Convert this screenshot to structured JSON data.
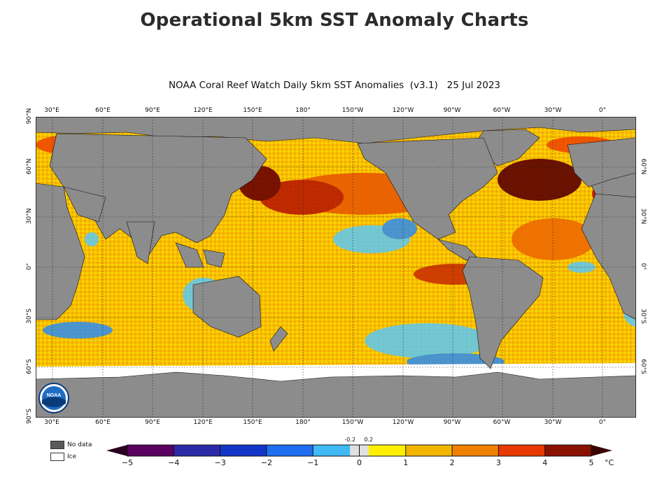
{
  "page": {
    "title": "Operational 5km SST Anomaly Charts"
  },
  "map": {
    "title": "NOAA Coral Reef Watch Daily 5km SST Anomalies  (v3.1)   25 Jul 2023",
    "lon_labels": [
      "30°E",
      "60°E",
      "90°E",
      "120°E",
      "150°E",
      "180°",
      "150°W",
      "120°W",
      "90°W",
      "60°W",
      "30°W",
      "0°"
    ],
    "lat_labels_left": [
      "90°N",
      "60°N",
      "30°N",
      "0°",
      "30°S",
      "60°S",
      "90°S"
    ],
    "lat_labels_right": [
      "60°N",
      "30°N",
      "0°",
      "30°S",
      "60°S"
    ],
    "logo_text": "NOAA",
    "colors": {
      "land": "#8c8c8c",
      "ice": "#ffffff",
      "background": "#ffffff"
    }
  },
  "legend": {
    "no_data_label": "No data",
    "ice_label": "Ice",
    "no_data_color": "#595959",
    "ice_color": "#ffffff"
  },
  "colorbar": {
    "ticks": [
      "−5",
      "−4",
      "−3",
      "−2",
      "−1",
      "0",
      "1",
      "2",
      "3",
      "4",
      "5"
    ],
    "small_ticks": [
      "-0.2",
      "0.2"
    ],
    "unit": "°C",
    "range": [
      -5,
      5
    ],
    "colors": [
      "#3d0030",
      "#7a0a8a",
      "#2a2aa8",
      "#1b44d6",
      "#2e8cf0",
      "#4dd5f5",
      "#e0e0e0",
      "#fff000",
      "#f6c800",
      "#f28c00",
      "#ee4a00",
      "#c01200",
      "#6a0000"
    ]
  }
}
